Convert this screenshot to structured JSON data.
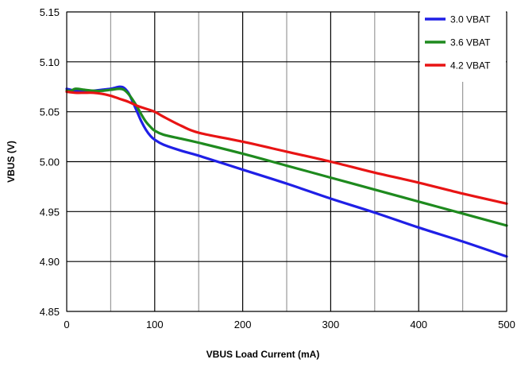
{
  "chart_data": {
    "type": "line",
    "title": "",
    "xlabel": "VBUS Load Current (mA)",
    "ylabel": "VBUS (V)",
    "xlim": [
      0,
      500
    ],
    "ylim": [
      4.85,
      5.15
    ],
    "xticks": [
      0,
      100,
      200,
      300,
      400,
      500
    ],
    "xtick_labels": [
      "0",
      "100",
      "200",
      "300",
      "400",
      "500"
    ],
    "yticks": [
      4.85,
      4.9,
      4.95,
      5.0,
      5.05,
      5.1,
      5.15
    ],
    "ytick_labels": [
      "4.85",
      "4.90",
      "4.95",
      "5.00",
      "5.05",
      "5.10",
      "5.15"
    ],
    "minor_x_gridlines": [
      50,
      150,
      250,
      350,
      450
    ],
    "grid": true,
    "legend_position": "top-right",
    "series": [
      {
        "name": "3.0 VBAT",
        "color": "#1f1fe6",
        "x": [
          0,
          10,
          20,
          30,
          40,
          50,
          60,
          65,
          70,
          75,
          80,
          85,
          90,
          95,
          100,
          110,
          130,
          150,
          200,
          250,
          300,
          350,
          400,
          450,
          500
        ],
        "y": [
          5.073,
          5.071,
          5.071,
          5.071,
          5.072,
          5.073,
          5.075,
          5.074,
          5.069,
          5.06,
          5.05,
          5.04,
          5.032,
          5.026,
          5.022,
          5.017,
          5.011,
          5.006,
          4.992,
          4.978,
          4.963,
          4.949,
          4.934,
          4.92,
          4.905
        ]
      },
      {
        "name": "3.6 VBAT",
        "color": "#1e8a1e",
        "x": [
          0,
          5,
          10,
          20,
          30,
          40,
          50,
          60,
          65,
          70,
          75,
          80,
          85,
          90,
          95,
          100,
          110,
          130,
          150,
          200,
          250,
          300,
          350,
          400,
          450,
          500
        ],
        "y": [
          5.071,
          5.071,
          5.073,
          5.072,
          5.071,
          5.071,
          5.072,
          5.073,
          5.072,
          5.068,
          5.062,
          5.055,
          5.047,
          5.04,
          5.035,
          5.031,
          5.027,
          5.023,
          5.019,
          5.008,
          4.996,
          4.984,
          4.972,
          4.96,
          4.948,
          4.936
        ]
      },
      {
        "name": "4.2 VBAT",
        "color": "#e81414",
        "x": [
          0,
          10,
          20,
          30,
          40,
          50,
          60,
          70,
          80,
          90,
          100,
          110,
          130,
          150,
          200,
          250,
          300,
          350,
          400,
          450,
          500
        ],
        "y": [
          5.07,
          5.069,
          5.069,
          5.069,
          5.068,
          5.066,
          5.063,
          5.06,
          5.056,
          5.053,
          5.05,
          5.045,
          5.036,
          5.029,
          5.02,
          5.01,
          5.0,
          4.989,
          4.979,
          4.968,
          4.958
        ]
      }
    ]
  }
}
